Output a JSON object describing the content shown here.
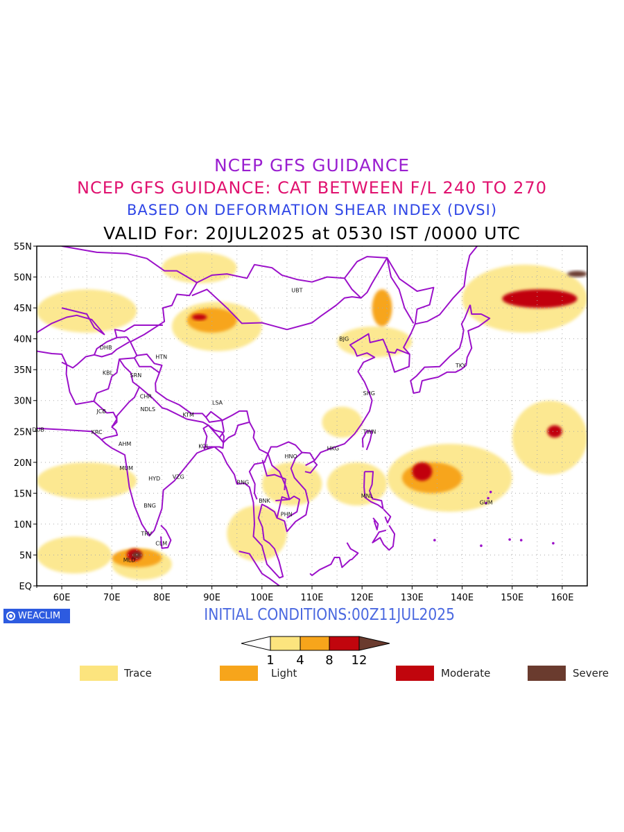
{
  "titles": {
    "line1": "NCEP GFS GUIDANCE",
    "line2": "NCEP GFS GUIDANCE: CAT BETWEEN F/L 240 TO 270",
    "line3": "BASED ON DEFORMATION SHEAR INDEX (DVSI)",
    "line4": "VALID For: 20JUL2025 at 0530 IST /0000 UTC"
  },
  "map": {
    "lon_range": [
      55,
      165
    ],
    "lat_range": [
      0,
      55
    ],
    "lon_ticks": [
      "60E",
      "70E",
      "80E",
      "90E",
      "100E",
      "110E",
      "120E",
      "130E",
      "140E",
      "150E",
      "160E"
    ],
    "lat_ticks": [
      "EQ",
      "5N",
      "10N",
      "15N",
      "20N",
      "25N",
      "30N",
      "35N",
      "40N",
      "45N",
      "50N",
      "55N"
    ],
    "grid": true,
    "boundary_color": "#9b10c9",
    "stations": [
      {
        "code": "UBT",
        "lon": 107.0,
        "lat": 47.9
      },
      {
        "code": "BJG",
        "lon": 116.4,
        "lat": 40.0
      },
      {
        "code": "DHB",
        "lon": 68.8,
        "lat": 38.6
      },
      {
        "code": "HTN",
        "lon": 79.9,
        "lat": 37.1
      },
      {
        "code": "KBL",
        "lon": 69.2,
        "lat": 34.5
      },
      {
        "code": "SRN",
        "lon": 74.8,
        "lat": 34.1
      },
      {
        "code": "TKY",
        "lon": 139.7,
        "lat": 35.7
      },
      {
        "code": "SHG",
        "lon": 121.4,
        "lat": 31.2
      },
      {
        "code": "LSA",
        "lon": 91.1,
        "lat": 29.7
      },
      {
        "code": "CHR",
        "lon": 76.8,
        "lat": 30.7
      },
      {
        "code": "JCB",
        "lon": 67.9,
        "lat": 28.3
      },
      {
        "code": "NDLS",
        "lon": 77.2,
        "lat": 28.6
      },
      {
        "code": "KTM",
        "lon": 85.3,
        "lat": 27.7
      },
      {
        "code": "DUB",
        "lon": 55.3,
        "lat": 25.3
      },
      {
        "code": "KRC",
        "lon": 67.0,
        "lat": 24.9
      },
      {
        "code": "TWN",
        "lon": 121.5,
        "lat": 25.0
      },
      {
        "code": "AHM",
        "lon": 72.6,
        "lat": 23.0
      },
      {
        "code": "KOL",
        "lon": 88.4,
        "lat": 22.6
      },
      {
        "code": "HKG",
        "lon": 114.2,
        "lat": 22.3
      },
      {
        "code": "HNO",
        "lon": 105.8,
        "lat": 21.0
      },
      {
        "code": "MUM",
        "lon": 72.9,
        "lat": 19.1
      },
      {
        "code": "HYD",
        "lon": 78.5,
        "lat": 17.4
      },
      {
        "code": "VZG",
        "lon": 83.3,
        "lat": 17.7
      },
      {
        "code": "RNG",
        "lon": 96.2,
        "lat": 16.8
      },
      {
        "code": "MNL",
        "lon": 121.0,
        "lat": 14.6
      },
      {
        "code": "GUM",
        "lon": 144.8,
        "lat": 13.5
      },
      {
        "code": "BNK",
        "lon": 100.5,
        "lat": 13.8
      },
      {
        "code": "BNG",
        "lon": 77.6,
        "lat": 13.0
      },
      {
        "code": "PHN",
        "lon": 104.9,
        "lat": 11.6
      },
      {
        "code": "TRV",
        "lon": 76.9,
        "lat": 8.5
      },
      {
        "code": "CLM",
        "lon": 79.9,
        "lat": 6.9
      },
      {
        "code": "MLD",
        "lon": 73.5,
        "lat": 4.2
      }
    ],
    "turbulence_areas": [
      {
        "level": "Trace",
        "lon": [
          55,
          70
        ],
        "lat": [
          2,
          8
        ]
      },
      {
        "level": "Trace",
        "lon": [
          70,
          82
        ],
        "lat": [
          1,
          6
        ]
      },
      {
        "level": "Light",
        "lon": [
          70,
          80
        ],
        "lat": [
          3,
          6
        ]
      },
      {
        "level": "Moderate",
        "lon": [
          73,
          76
        ],
        "lat": [
          4,
          6
        ]
      },
      {
        "level": "Severe",
        "lon": [
          74,
          76
        ],
        "lat": [
          4.5,
          5.5
        ]
      },
      {
        "level": "Trace",
        "lon": [
          93,
          105
        ],
        "lat": [
          4,
          13
        ]
      },
      {
        "level": "Trace",
        "lon": [
          82,
          100
        ],
        "lat": [
          38,
          46
        ]
      },
      {
        "level": "Light",
        "lon": [
          85,
          95
        ],
        "lat": [
          41,
          45
        ]
      },
      {
        "level": "Moderate",
        "lon": [
          86,
          89
        ],
        "lat": [
          43,
          44
        ]
      },
      {
        "level": "Trace",
        "lon": [
          55,
          75
        ],
        "lat": [
          41,
          48
        ]
      },
      {
        "level": "Trace",
        "lon": [
          125,
          150
        ],
        "lat": [
          12,
          23
        ]
      },
      {
        "level": "Light",
        "lon": [
          128,
          140
        ],
        "lat": [
          15,
          20
        ]
      },
      {
        "level": "Moderate",
        "lon": [
          130,
          134
        ],
        "lat": [
          17,
          20
        ]
      },
      {
        "level": "Trace",
        "lon": [
          150,
          165
        ],
        "lat": [
          18,
          30
        ]
      },
      {
        "level": "Moderate",
        "lon": [
          157,
          160
        ],
        "lat": [
          24,
          26
        ]
      },
      {
        "level": "Trace",
        "lon": [
          140,
          165
        ],
        "lat": [
          41,
          52
        ]
      },
      {
        "level": "Moderate",
        "lon": [
          148,
          163
        ],
        "lat": [
          45,
          48
        ]
      },
      {
        "level": "Severe",
        "lon": [
          161,
          165
        ],
        "lat": [
          50,
          51
        ]
      },
      {
        "level": "Trace",
        "lon": [
          115,
          130
        ],
        "lat": [
          37,
          42
        ]
      },
      {
        "level": "Light",
        "lon": [
          122,
          126
        ],
        "lat": [
          42,
          48
        ]
      },
      {
        "level": "Trace",
        "lon": [
          112,
          120
        ],
        "lat": [
          24,
          29
        ]
      },
      {
        "level": "Trace",
        "lon": [
          100,
          112
        ],
        "lat": [
          13,
          20
        ]
      },
      {
        "level": "Trace",
        "lon": [
          113,
          125
        ],
        "lat": [
          13,
          20
        ]
      },
      {
        "level": "Trace",
        "lon": [
          55,
          75
        ],
        "lat": [
          14,
          20
        ]
      },
      {
        "level": "Trace",
        "lon": [
          80,
          95
        ],
        "lat": [
          49,
          54
        ]
      }
    ]
  },
  "initial_conditions": "INITIAL CONDITIONS:00Z11JUL2025",
  "badge": "WEACLIM",
  "colorbar": {
    "ticks": [
      "1",
      "4",
      "8",
      "12"
    ],
    "colors": [
      "#fce47e",
      "#f7a51b",
      "#c1050d",
      "#6a3b2e"
    ]
  },
  "legend": [
    {
      "label": "Trace",
      "color": "#fce47e"
    },
    {
      "label": "Light",
      "color": "#f7a51b"
    },
    {
      "label": "Moderate",
      "color": "#c1050d"
    },
    {
      "label": "Severe",
      "color": "#6a3b2e"
    }
  ]
}
